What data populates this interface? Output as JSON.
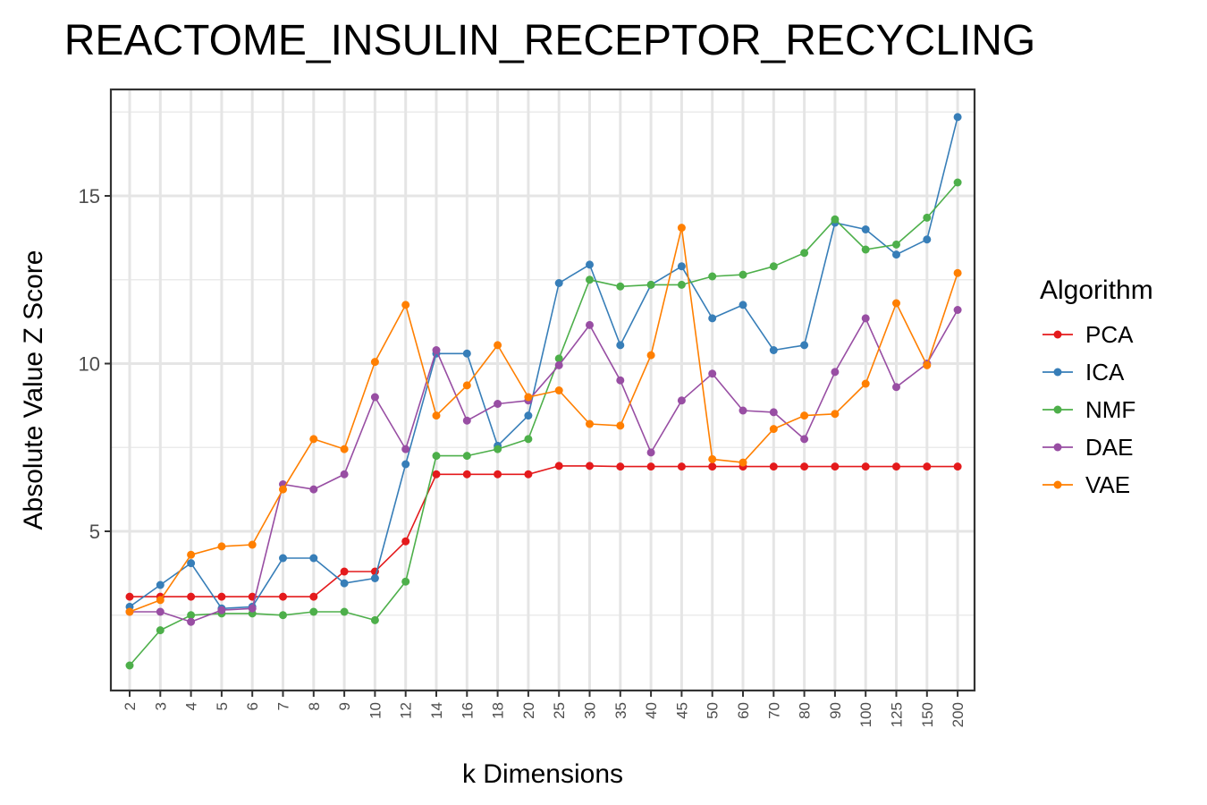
{
  "chart_data": {
    "type": "line",
    "title": "REACTOME_INSULIN_RECEPTOR_RECYCLING",
    "xlabel": "k Dimensions",
    "ylabel": "Absolute Value Z Score",
    "categories": [
      "2",
      "3",
      "4",
      "5",
      "6",
      "7",
      "8",
      "9",
      "10",
      "12",
      "14",
      "16",
      "18",
      "20",
      "25",
      "30",
      "35",
      "40",
      "45",
      "50",
      "60",
      "70",
      "80",
      "90",
      "100",
      "125",
      "150",
      "200"
    ],
    "y_ticks": [
      5,
      10,
      15
    ],
    "ylim": [
      0.5,
      17.9
    ],
    "grid": true,
    "legend": {
      "title": "Algorithm",
      "position": "right"
    },
    "series": [
      {
        "name": "PCA",
        "color": "#e41a1c",
        "values": [
          3.05,
          3.05,
          3.05,
          3.05,
          3.05,
          3.05,
          3.05,
          3.8,
          3.8,
          4.7,
          6.7,
          6.7,
          6.7,
          6.7,
          6.95,
          6.95,
          6.93,
          6.93,
          6.93,
          6.93,
          6.93,
          6.93,
          6.93,
          6.93,
          6.93,
          6.93,
          6.93,
          6.93
        ]
      },
      {
        "name": "ICA",
        "color": "#377eb8",
        "values": [
          2.75,
          3.4,
          4.05,
          2.7,
          2.75,
          4.2,
          4.2,
          3.45,
          3.6,
          7.0,
          10.3,
          10.3,
          7.55,
          8.45,
          12.4,
          12.95,
          10.55,
          12.35,
          12.9,
          11.35,
          11.75,
          10.4,
          10.55,
          14.2,
          14.0,
          13.25,
          13.7,
          17.35
        ]
      },
      {
        "name": "NMF",
        "color": "#4daf4a",
        "values": [
          1.0,
          2.05,
          2.5,
          2.55,
          2.55,
          2.5,
          2.6,
          2.6,
          2.35,
          3.5,
          7.25,
          7.25,
          7.45,
          7.75,
          10.15,
          12.5,
          12.3,
          12.35,
          12.35,
          12.6,
          12.65,
          12.9,
          13.3,
          14.3,
          13.4,
          13.55,
          14.35,
          15.4
        ]
      },
      {
        "name": "DAE",
        "color": "#984ea3",
        "values": [
          2.6,
          2.6,
          2.3,
          2.65,
          2.7,
          6.4,
          6.25,
          6.7,
          9.0,
          7.45,
          10.4,
          8.3,
          8.8,
          8.9,
          9.95,
          11.15,
          9.5,
          7.35,
          8.9,
          9.7,
          8.6,
          8.55,
          7.75,
          9.75,
          11.35,
          9.3,
          10.0,
          11.6
        ]
      },
      {
        "name": "VAE",
        "color": "#ff7f00",
        "values": [
          2.6,
          2.95,
          4.3,
          4.55,
          4.6,
          6.25,
          7.75,
          7.45,
          10.05,
          11.75,
          8.45,
          9.35,
          10.55,
          9.0,
          9.2,
          8.2,
          8.15,
          10.25,
          14.05,
          7.15,
          7.05,
          8.05,
          8.45,
          8.5,
          9.4,
          11.8,
          9.95,
          12.7
        ]
      }
    ]
  }
}
